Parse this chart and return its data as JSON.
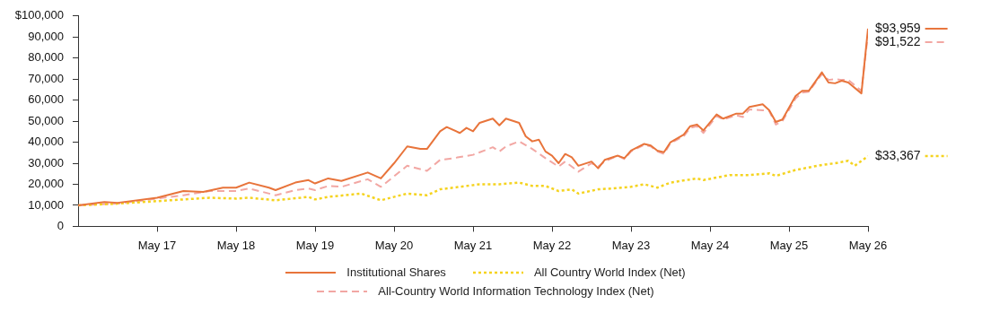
{
  "chart_data": {
    "type": "line",
    "xlim": [
      "2016-05",
      "2026-05"
    ],
    "xticks": [
      {
        "value": "2017-05",
        "label": "May 17"
      },
      {
        "value": "2018-05",
        "label": "May 18"
      },
      {
        "value": "2019-05",
        "label": "May 19"
      },
      {
        "value": "2020-05",
        "label": "May 20"
      },
      {
        "value": "2021-05",
        "label": "May 21"
      },
      {
        "value": "2022-05",
        "label": "May 22"
      },
      {
        "value": "2023-05",
        "label": "May 23"
      },
      {
        "value": "2024-05",
        "label": "May 24"
      },
      {
        "value": "2025-05",
        "label": "May 25"
      },
      {
        "value": "2026-05",
        "label": "May 26"
      }
    ],
    "ylim": [
      0,
      100000
    ],
    "yticks": [
      {
        "value": 0,
        "label": "0"
      },
      {
        "value": 10000,
        "label": "10,000"
      },
      {
        "value": 20000,
        "label": "20,000"
      },
      {
        "value": 30000,
        "label": "30,000"
      },
      {
        "value": 40000,
        "label": "40,000"
      },
      {
        "value": 50000,
        "label": "50,000"
      },
      {
        "value": 60000,
        "label": "60,000"
      },
      {
        "value": 70000,
        "label": "70,000"
      },
      {
        "value": 80000,
        "label": "80,000"
      },
      {
        "value": 90000,
        "label": "90,000"
      },
      {
        "value": 100000,
        "label": "$100,000"
      }
    ],
    "grid": false,
    "legend": "bottom",
    "marker": "none",
    "series": [
      {
        "name": "Institutional Shares",
        "color": "#e8743b",
        "line_style": "solid",
        "x": [
          "2016-05",
          "2016-09",
          "2016-11",
          "2017-05",
          "2017-09",
          "2017-12",
          "2018-03",
          "2018-05",
          "2018-07",
          "2018-10",
          "2018-11",
          "2019-02",
          "2019-04",
          "2019-05",
          "2019-07",
          "2019-09",
          "2020-01",
          "2020-03",
          "2020-05",
          "2020-07",
          "2020-09",
          "2020-10",
          "2020-12",
          "2021-01",
          "2021-03",
          "2021-04",
          "2021-05",
          "2021-06",
          "2021-08",
          "2021-09",
          "2021-10",
          "2021-12",
          "2022-01",
          "2022-02",
          "2022-03",
          "2022-04",
          "2022-05",
          "2022-06",
          "2022-07",
          "2022-08",
          "2022-09",
          "2022-11",
          "2022-12",
          "2023-01",
          "2023-03",
          "2023-04",
          "2023-05",
          "2023-07",
          "2023-08",
          "2023-09",
          "2023-10",
          "2023-11",
          "2024-01",
          "2024-02",
          "2024-03",
          "2024-04",
          "2024-06",
          "2024-07",
          "2024-09",
          "2024-10",
          "2024-11",
          "2025-01",
          "2025-02",
          "2025-03",
          "2025-04",
          "2025-06",
          "2025-07",
          "2025-08",
          "2025-10",
          "2025-11",
          "2025-12",
          "2026-01",
          "2026-02",
          "2026-04",
          "2026-05"
        ],
        "values": [
          10000,
          11600,
          11200,
          13600,
          16800,
          16400,
          18400,
          18400,
          20800,
          18400,
          17200,
          20800,
          22000,
          20400,
          22800,
          21600,
          25600,
          22800,
          30000,
          38000,
          36800,
          36800,
          45200,
          47200,
          44400,
          46800,
          45200,
          49200,
          51200,
          48000,
          51200,
          49200,
          42800,
          40400,
          41200,
          35600,
          33600,
          30000,
          34400,
          32800,
          28800,
          30800,
          27600,
          31600,
          33600,
          32400,
          36000,
          39200,
          38400,
          36000,
          35200,
          40000,
          43600,
          47600,
          48400,
          45600,
          53200,
          51200,
          53600,
          53600,
          56800,
          58000,
          55200,
          49600,
          50800,
          62000,
          64400,
          64400,
          73200,
          68400,
          68000,
          69200,
          68400,
          63200,
          93959
        ],
        "value_labels": [
          null,
          null,
          null,
          null,
          null,
          null,
          null,
          null,
          null,
          null,
          null,
          null,
          null,
          null,
          null,
          null,
          null,
          null,
          null,
          null,
          null,
          null,
          null,
          null,
          null,
          null,
          null,
          null,
          null,
          null,
          null,
          null,
          null,
          null,
          null,
          null,
          null,
          null,
          null,
          null,
          null,
          null,
          null,
          null,
          null,
          null,
          null,
          null,
          null,
          null,
          null,
          null,
          null,
          null,
          null,
          null,
          null,
          null,
          null,
          null,
          null,
          null,
          null,
          null,
          null,
          null,
          null,
          null,
          null,
          null,
          null,
          null,
          null,
          null,
          "$93,959"
        ]
      },
      {
        "name": "All Country World Index (Net)",
        "color": "#f5d31f",
        "line_style": "dotted",
        "x": [
          "2016-05",
          "2016-11",
          "2017-05",
          "2018-01",
          "2018-05",
          "2018-07",
          "2018-11",
          "2019-04",
          "2019-05",
          "2019-07",
          "2019-12",
          "2020-03",
          "2020-07",
          "2020-10",
          "2020-12",
          "2021-03",
          "2021-06",
          "2021-09",
          "2021-12",
          "2022-02",
          "2022-04",
          "2022-06",
          "2022-08",
          "2022-09",
          "2022-12",
          "2023-02",
          "2023-05",
          "2023-07",
          "2023-09",
          "2023-11",
          "2024-03",
          "2024-04",
          "2024-08",
          "2024-11",
          "2025-02",
          "2025-03",
          "2025-06",
          "2025-10",
          "2025-12",
          "2026-02",
          "2026-03",
          "2026-05"
        ],
        "values": [
          10000,
          10800,
          12000,
          13600,
          13200,
          13600,
          12400,
          14000,
          12800,
          14000,
          15600,
          12400,
          15600,
          14800,
          17600,
          18800,
          20000,
          20000,
          20800,
          19200,
          19200,
          16800,
          17600,
          15600,
          17600,
          18000,
          18800,
          20000,
          18400,
          20800,
          22800,
          22000,
          24400,
          24400,
          25200,
          24000,
          26800,
          29200,
          30000,
          31200,
          28800,
          33367
        ],
        "value_labels": [
          null,
          null,
          null,
          null,
          null,
          null,
          null,
          null,
          null,
          null,
          null,
          null,
          null,
          null,
          null,
          null,
          null,
          null,
          null,
          null,
          null,
          null,
          null,
          null,
          null,
          null,
          null,
          null,
          null,
          null,
          null,
          null,
          null,
          null,
          null,
          null,
          null,
          null,
          null,
          null,
          null,
          "$33,367"
        ]
      },
      {
        "name": "All-Country World Information Technology Index (Net)",
        "color": "#f2a7a3",
        "line_style": "dashed",
        "x": [
          "2016-05",
          "2016-11",
          "2017-05",
          "2017-09",
          "2018-01",
          "2018-05",
          "2018-07",
          "2018-11",
          "2019-02",
          "2019-04",
          "2019-05",
          "2019-07",
          "2019-09",
          "2020-01",
          "2020-03",
          "2020-07",
          "2020-10",
          "2020-12",
          "2021-02",
          "2021-05",
          "2021-08",
          "2021-09",
          "2021-10",
          "2021-12",
          "2022-02",
          "2022-04",
          "2022-06",
          "2022-07",
          "2022-09",
          "2022-11",
          "2022-12",
          "2023-01",
          "2023-03",
          "2023-04",
          "2023-05",
          "2023-07",
          "2023-08",
          "2023-09",
          "2023-10",
          "2023-11",
          "2024-01",
          "2024-02",
          "2024-03",
          "2024-04",
          "2024-06",
          "2024-07",
          "2024-09",
          "2024-10",
          "2024-11",
          "2025-01",
          "2025-02",
          "2025-03",
          "2025-04",
          "2025-06",
          "2025-07",
          "2025-08",
          "2025-10",
          "2025-11",
          "2025-12",
          "2026-01",
          "2026-02",
          "2026-04",
          "2026-05"
        ],
        "values": [
          10000,
          10800,
          13200,
          14800,
          16800,
          16800,
          18000,
          14800,
          17200,
          18000,
          17200,
          19200,
          18800,
          22400,
          18800,
          28800,
          26400,
          31600,
          32400,
          34000,
          37600,
          35600,
          38000,
          40400,
          36800,
          32400,
          28400,
          30800,
          26000,
          30000,
          28400,
          30800,
          33600,
          32000,
          35600,
          38800,
          38000,
          35600,
          34400,
          39600,
          42800,
          46800,
          47600,
          44400,
          52400,
          50800,
          52800,
          52000,
          55600,
          55200,
          54800,
          48400,
          50000,
          60800,
          63600,
          64000,
          72400,
          69600,
          70000,
          69600,
          69600,
          64400,
          91522
        ],
        "value_labels": [
          null,
          null,
          null,
          null,
          null,
          null,
          null,
          null,
          null,
          null,
          null,
          null,
          null,
          null,
          null,
          null,
          null,
          null,
          null,
          null,
          null,
          null,
          null,
          null,
          null,
          null,
          null,
          null,
          null,
          null,
          null,
          null,
          null,
          null,
          null,
          null,
          null,
          null,
          null,
          null,
          null,
          null,
          null,
          null,
          null,
          null,
          null,
          null,
          null,
          null,
          null,
          null,
          null,
          null,
          null,
          null,
          null,
          null,
          null,
          null,
          null,
          null,
          "$91,522"
        ]
      }
    ]
  }
}
